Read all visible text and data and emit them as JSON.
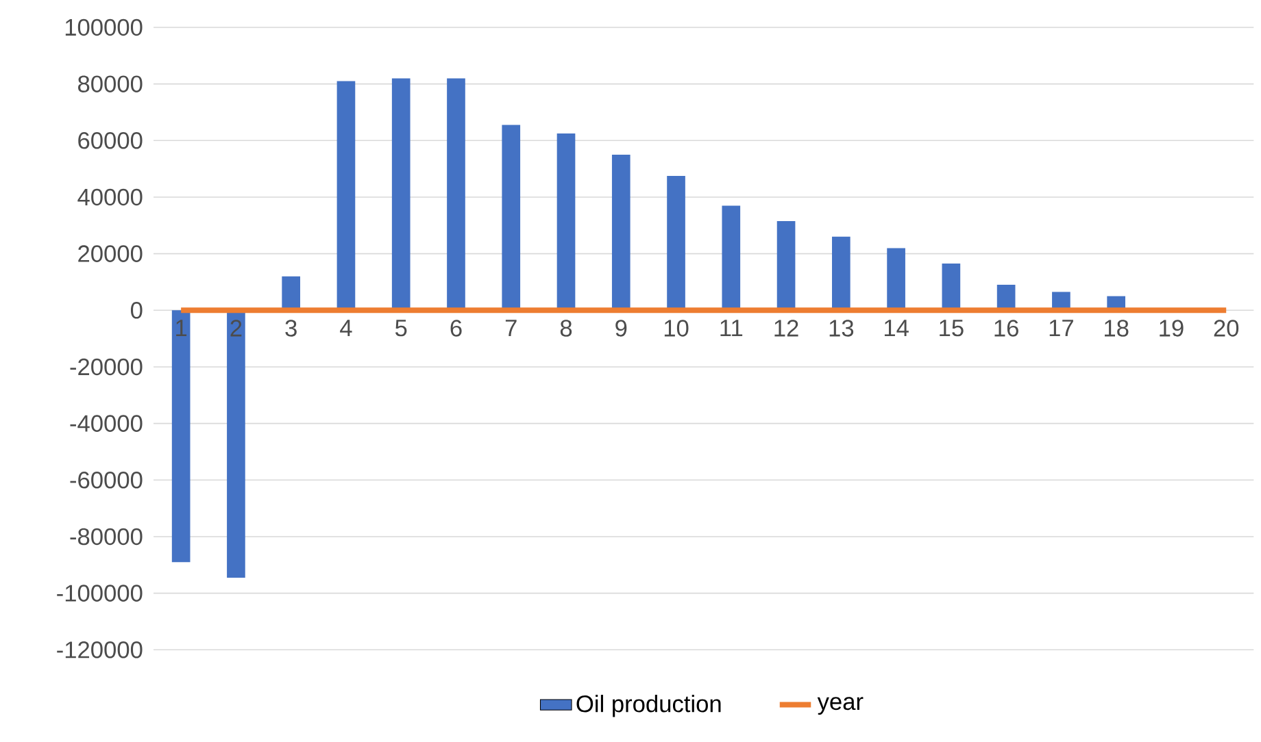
{
  "chart_data": {
    "type": "bar",
    "categories": [
      "1",
      "2",
      "3",
      "4",
      "5",
      "6",
      "7",
      "8",
      "9",
      "10",
      "11",
      "12",
      "13",
      "14",
      "15",
      "16",
      "17",
      "18",
      "19",
      "20"
    ],
    "series": [
      {
        "name": "Oil production",
        "color": "#4472c4",
        "values": [
          -89000,
          -94500,
          12000,
          81000,
          82000,
          82000,
          65500,
          62500,
          55000,
          47500,
          37000,
          31500,
          26000,
          22000,
          16500,
          9000,
          6500,
          5000,
          0,
          0
        ]
      },
      {
        "name": "year",
        "type": "line",
        "color": "#ed7d31",
        "values": [
          0,
          0,
          0,
          0,
          0,
          0,
          0,
          0,
          0,
          0,
          0,
          0,
          0,
          0,
          0,
          0,
          0,
          0,
          0,
          0
        ]
      }
    ],
    "ylim": [
      -120000,
      100000
    ],
    "yticks": [
      -120000,
      -100000,
      -80000,
      -60000,
      -40000,
      -20000,
      0,
      20000,
      40000,
      60000,
      80000,
      100000
    ],
    "grid": "y",
    "legend": "bottom"
  }
}
